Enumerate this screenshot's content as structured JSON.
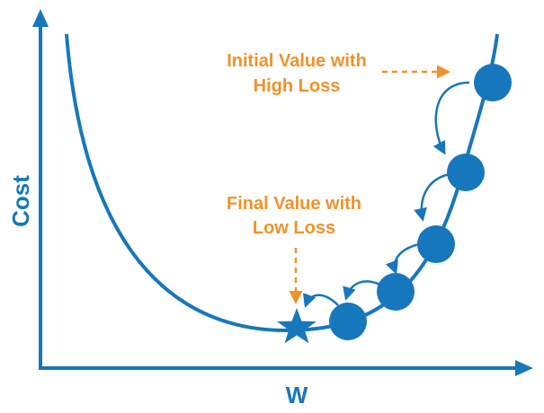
{
  "axes": {
    "x_label": "W",
    "y_label": "Cost"
  },
  "annotations": {
    "initial": {
      "line1": "Initial Value with",
      "line2": "High Loss"
    },
    "final": {
      "line1": "Final Value with",
      "line2": "Low Loss"
    }
  },
  "colors": {
    "primary": "#1777bc",
    "accent": "#f0922a",
    "background": "#ffffff"
  },
  "icons": {
    "step_marker": "filled-circle",
    "minimum_marker": "five-point-star"
  },
  "gradient_steps": 6
}
